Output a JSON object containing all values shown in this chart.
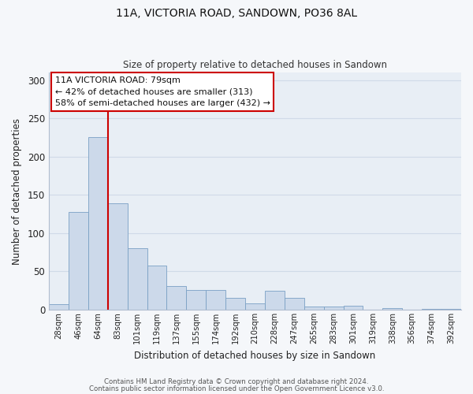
{
  "title": "11A, VICTORIA ROAD, SANDOWN, PO36 8AL",
  "subtitle": "Size of property relative to detached houses in Sandown",
  "xlabel": "Distribution of detached houses by size in Sandown",
  "ylabel": "Number of detached properties",
  "bar_labels": [
    "28sqm",
    "46sqm",
    "64sqm",
    "83sqm",
    "101sqm",
    "119sqm",
    "137sqm",
    "155sqm",
    "174sqm",
    "192sqm",
    "210sqm",
    "228sqm",
    "247sqm",
    "265sqm",
    "283sqm",
    "301sqm",
    "319sqm",
    "338sqm",
    "356sqm",
    "374sqm",
    "392sqm"
  ],
  "bar_values": [
    7,
    128,
    226,
    139,
    80,
    58,
    31,
    26,
    26,
    15,
    8,
    25,
    15,
    4,
    4,
    5,
    0,
    2,
    0,
    1,
    1
  ],
  "bar_color": "#ccd9ea",
  "bar_edge_color": "#7aa0c4",
  "vline_color": "#cc0000",
  "vline_pos": 2.5,
  "annotation_line1": "11A VICTORIA ROAD: 79sqm",
  "annotation_line2": "← 42% of detached houses are smaller (313)",
  "annotation_line3": "58% of semi-detached houses are larger (432) →",
  "annotation_box_facecolor": "#ffffff",
  "annotation_box_edgecolor": "#cc0000",
  "ylim": [
    0,
    310
  ],
  "yticks": [
    0,
    50,
    100,
    150,
    200,
    250,
    300
  ],
  "grid_color": "#d0dae8",
  "plot_bg_color": "#e8eef5",
  "fig_bg_color": "#f5f7fa",
  "footer1": "Contains HM Land Registry data © Crown copyright and database right 2024.",
  "footer2": "Contains public sector information licensed under the Open Government Licence v3.0."
}
